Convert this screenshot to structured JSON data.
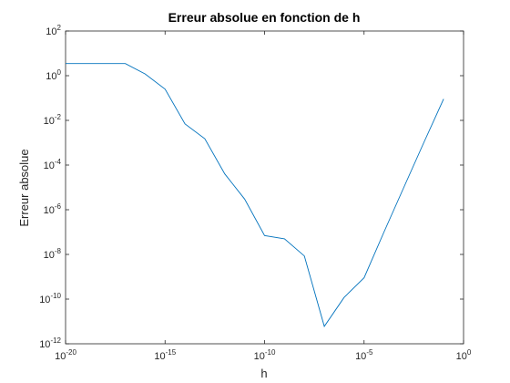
{
  "chart_data": {
    "type": "line",
    "title": "Erreur absolue en fonction de h",
    "xlabel": "h",
    "ylabel": "Erreur absolue",
    "xscale": "log",
    "yscale": "log",
    "xlim": [
      1e-20,
      1
    ],
    "ylim": [
      1e-12,
      100
    ],
    "grid": false,
    "xticks": [
      {
        "value": 1e-20,
        "base": "10",
        "exp": "-20"
      },
      {
        "value": 1e-15,
        "base": "10",
        "exp": "-15"
      },
      {
        "value": 1e-10,
        "base": "10",
        "exp": "-10"
      },
      {
        "value": 1e-05,
        "base": "10",
        "exp": "-5"
      },
      {
        "value": 1,
        "base": "10",
        "exp": "0"
      }
    ],
    "yticks": [
      {
        "value": 1e-12,
        "base": "10",
        "exp": "-12"
      },
      {
        "value": 1e-10,
        "base": "10",
        "exp": "-10"
      },
      {
        "value": 1e-08,
        "base": "10",
        "exp": "-8"
      },
      {
        "value": 1e-06,
        "base": "10",
        "exp": "-6"
      },
      {
        "value": 0.0001,
        "base": "10",
        "exp": "-4"
      },
      {
        "value": 0.01,
        "base": "10",
        "exp": "-2"
      },
      {
        "value": 1,
        "base": "10",
        "exp": "0"
      },
      {
        "value": 100,
        "base": "10",
        "exp": "2"
      }
    ],
    "series": [
      {
        "color": "#0072BD",
        "x": [
          1e-20,
          1e-19,
          1e-18,
          1e-17,
          1e-16,
          1e-15,
          1e-14,
          1e-13,
          1e-12,
          1e-11,
          1e-10,
          1e-09,
          1e-08,
          1e-07,
          1e-06,
          1e-05,
          0.0001,
          0.001,
          0.01,
          0.1
        ],
        "y": [
          3.5,
          3.5,
          3.5,
          3.5,
          1.2,
          0.25,
          0.007,
          0.0015,
          4e-05,
          3e-06,
          7e-08,
          5e-08,
          8.5e-09,
          6e-12,
          1.2e-10,
          9e-10,
          1e-07,
          1e-05,
          0.001,
          0.09
        ]
      }
    ]
  }
}
